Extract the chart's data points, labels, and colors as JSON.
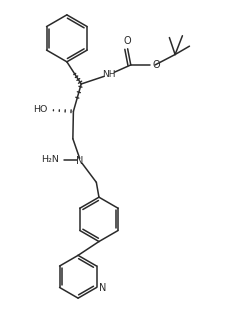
{
  "bg_color": "#ffffff",
  "line_color": "#2a2a2a",
  "line_width": 1.1,
  "figsize": [
    2.36,
    3.13
  ],
  "dpi": 100,
  "xlim": [
    0,
    10
  ],
  "ylim": [
    0,
    13.2
  ]
}
